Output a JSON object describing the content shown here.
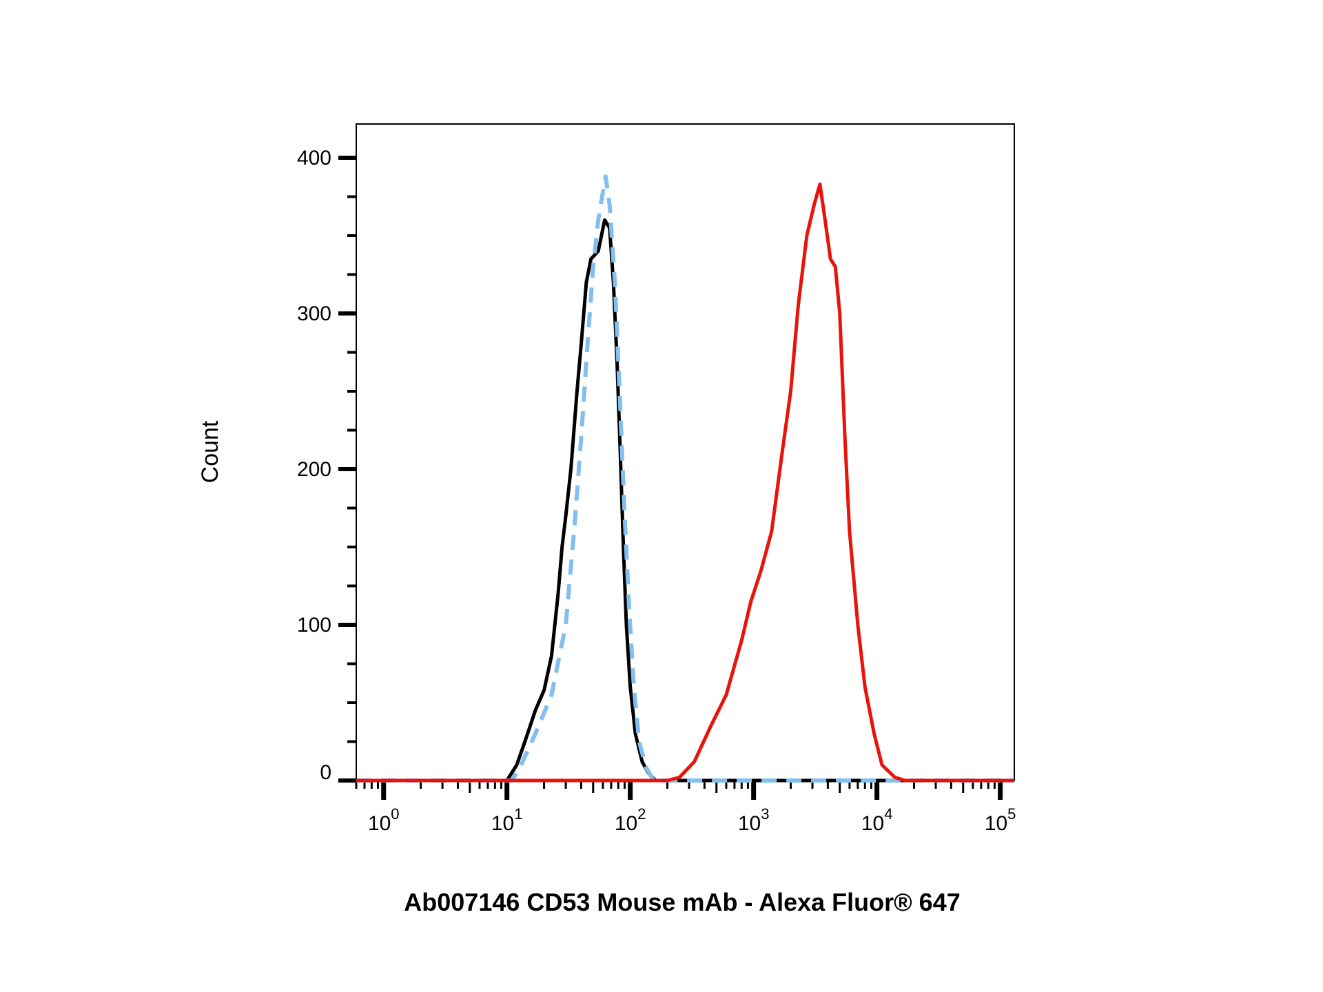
{
  "chart_data": {
    "type": "line",
    "xlabel": "Ab007146 CD53 Mouse mAb - Alexa Fluor® 647",
    "ylabel": "Count",
    "x_scale": "log",
    "xlim": [
      0.6,
      130000
    ],
    "ylim": [
      0,
      425
    ],
    "y_ticks": [
      0,
      100,
      200,
      300,
      400
    ],
    "x_ticks": [
      {
        "value": 1,
        "base": "10",
        "exp": "0"
      },
      {
        "value": 10,
        "base": "10",
        "exp": "1"
      },
      {
        "value": 100,
        "base": "10",
        "exp": "2"
      },
      {
        "value": 1000,
        "base": "10",
        "exp": "3"
      },
      {
        "value": 10000,
        "base": "10",
        "exp": "4"
      },
      {
        "value": 100000,
        "base": "10",
        "exp": "5"
      }
    ],
    "grid": false,
    "legend": "none",
    "series": [
      {
        "color": "#000000",
        "style": "solid",
        "points": [
          [
            0.6,
            0
          ],
          [
            10,
            0
          ],
          [
            12,
            10
          ],
          [
            14,
            25
          ],
          [
            17,
            45
          ],
          [
            20,
            58
          ],
          [
            23,
            80
          ],
          [
            26,
            120
          ],
          [
            28,
            150
          ],
          [
            30,
            170
          ],
          [
            33,
            200
          ],
          [
            37,
            250
          ],
          [
            40,
            280
          ],
          [
            44,
            320
          ],
          [
            48,
            335
          ],
          [
            55,
            340
          ],
          [
            62,
            360
          ],
          [
            68,
            355
          ],
          [
            73,
            320
          ],
          [
            78,
            270
          ],
          [
            83,
            210
          ],
          [
            88,
            150
          ],
          [
            93,
            100
          ],
          [
            100,
            60
          ],
          [
            110,
            30
          ],
          [
            125,
            12
          ],
          [
            140,
            5
          ],
          [
            160,
            0
          ],
          [
            130000,
            0
          ]
        ]
      },
      {
        "color": "#80bfef",
        "style": "dashed",
        "points": [
          [
            0.6,
            0
          ],
          [
            11,
            0
          ],
          [
            13,
            10
          ],
          [
            17,
            30
          ],
          [
            23,
            55
          ],
          [
            30,
            100
          ],
          [
            35,
            160
          ],
          [
            40,
            220
          ],
          [
            45,
            280
          ],
          [
            50,
            330
          ],
          [
            55,
            360
          ],
          [
            63,
            388
          ],
          [
            68,
            370
          ],
          [
            75,
            320
          ],
          [
            82,
            250
          ],
          [
            90,
            170
          ],
          [
            98,
            110
          ],
          [
            107,
            60
          ],
          [
            118,
            25
          ],
          [
            135,
            8
          ],
          [
            155,
            0
          ],
          [
            130000,
            0
          ]
        ]
      },
      {
        "color": "#e8140c",
        "style": "solid",
        "points": [
          [
            0.6,
            0
          ],
          [
            200,
            0
          ],
          [
            250,
            2
          ],
          [
            330,
            12
          ],
          [
            450,
            35
          ],
          [
            600,
            55
          ],
          [
            800,
            90
          ],
          [
            950,
            115
          ],
          [
            1150,
            135
          ],
          [
            1400,
            160
          ],
          [
            1700,
            210
          ],
          [
            2000,
            250
          ],
          [
            2300,
            305
          ],
          [
            2700,
            350
          ],
          [
            3100,
            370
          ],
          [
            3450,
            383
          ],
          [
            3800,
            360
          ],
          [
            4200,
            335
          ],
          [
            4600,
            330
          ],
          [
            5000,
            300
          ],
          [
            5500,
            220
          ],
          [
            6000,
            160
          ],
          [
            7000,
            100
          ],
          [
            8000,
            60
          ],
          [
            9500,
            30
          ],
          [
            11000,
            10
          ],
          [
            14000,
            2
          ],
          [
            17000,
            0
          ],
          [
            130000,
            0
          ]
        ]
      }
    ]
  }
}
